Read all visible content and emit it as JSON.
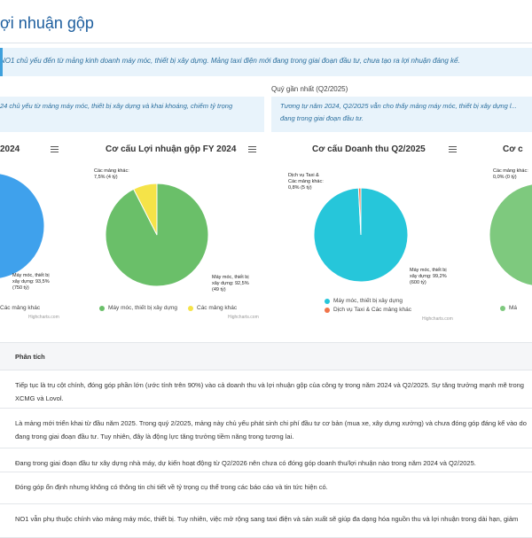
{
  "page": {
    "title": "ợi nhuận gộp",
    "banner": "NO1 chủ yếu đến từ mảng kinh doanh máy móc, thiết bị xây dựng. Mảng taxi điện mới đang trong giai đoạn đầu tư, chưa tạo ra lợi nhuận đáng kể.",
    "recent_quarter_label": "Quý gần nhất (Q2/2025)",
    "note_left": "24 chủ yếu từ mảng máy móc, thiết bị xây dựng và khai khoáng, chiếm tỷ trọng",
    "note_right": "Tương tự năm 2024, Q2/2025 vẫn cho thấy mảng máy móc, thiết bị xây dựng l... đang trong giai đoạn đầu tư."
  },
  "charts": [
    {
      "title": "2024",
      "label_main": [
        "Máy móc, thiết bị",
        "xây dựng: 93,5%",
        "(750 tỷ)"
      ],
      "legend": [
        "",
        "Các mảng khác"
      ],
      "credit": "Highcharts.com"
    },
    {
      "title": "Cơ cấu Lợi nhuận gộp FY 2024",
      "label_main": [
        "Máy móc, thiết bị",
        "xây dựng: 92,5%",
        "(49 tỷ)"
      ],
      "label_other": [
        "Các mảng khác:",
        "7,5% (4 tỷ)"
      ],
      "legend": [
        "Máy móc, thiết bị xây dựng",
        "Các mảng khác"
      ],
      "credit": "Highcharts.com"
    },
    {
      "title": "Cơ cấu Doanh thu Q2/2025",
      "label_main": [
        "Máy móc, thiết bị",
        "xây dựng: 99,2%",
        "(600 tỷ)"
      ],
      "label_other": [
        "Dịch vụ Taxi &",
        "Các mảng khác:",
        "0,8% (5 tỷ)"
      ],
      "legend": [
        "Máy móc, thiết bị xây dựng",
        "Dịch vụ Taxi & Các mảng khác"
      ],
      "credit": "Highcharts.com"
    },
    {
      "title": "Cơ c",
      "label_other": [
        "Các mảng khác:",
        "0,0% (0 tỷ)"
      ],
      "legend": [
        "Má"
      ]
    }
  ],
  "chart_data": [
    {
      "type": "pie",
      "title": "",
      "slices": [
        {
          "name": "Máy móc, thiết bị xây dựng",
          "value": 93.5
        },
        {
          "name": "Các mảng khác",
          "value": 6.5
        }
      ],
      "colors": [
        "#3fa1ec",
        "#f2e04f"
      ]
    },
    {
      "type": "pie",
      "title": "Cơ cấu Lợi nhuận gộp FY 2024",
      "slices": [
        {
          "name": "Máy móc, thiết bị xây dựng",
          "value": 92.5
        },
        {
          "name": "Các mảng khác",
          "value": 7.5
        }
      ],
      "colors": [
        "#6abf69",
        "#f5e348"
      ]
    },
    {
      "type": "pie",
      "title": "Cơ cấu Doanh thu Q2/2025",
      "slices": [
        {
          "name": "Máy móc, thiết bị xây dựng",
          "value": 99.2
        },
        {
          "name": "Dịch vụ Taxi & Các mảng khác",
          "value": 0.8
        }
      ],
      "colors": [
        "#26c6da",
        "#f0744a"
      ]
    },
    {
      "type": "pie",
      "title": "",
      "slices": [
        {
          "name": "Máy móc, thiết bị xây dựng",
          "value": 100
        },
        {
          "name": "Các mảng khác",
          "value": 0.0
        }
      ],
      "colors": [
        "#7ec97e",
        "#f5e348"
      ]
    }
  ],
  "table": {
    "header": "Phân tích",
    "rows": [
      "Tiếp tục là trụ cột chính, đóng góp phần lớn (ước tính trên 90%) vào cả doanh thu và lợi nhuận gộp của công ty trong năm 2024 và Q2/2025. Sự tăng trưởng mạnh mẽ trong XCMG và Lovol.",
      "Là mảng mới triển khai từ đầu năm 2025. Trong quý 2/2025, mảng này chủ yếu phát sinh chi phí đầu tư cơ bản (mua xe, xây dựng xưởng) và chưa đóng góp đáng kể vào do đang trong giai đoạn đầu tư. Tuy nhiên, đây là động lực tăng trưởng tiềm năng trong tương lai.",
      "Đang trong giai đoạn đầu tư xây dựng nhà máy, dự kiến hoạt động từ Q2/2026 nên chưa có đóng góp doanh thu/lợi nhuận nào trong năm 2024 và Q2/2025.",
      "Đóng góp ổn định nhưng không có thông tin chi tiết về tỷ trọng cụ thể trong các báo cáo và tin tức hiện có.",
      "NO1 vẫn phụ thuộc chính vào mảng máy móc, thiết bị. Tuy nhiên, việc mở rộng sang taxi điện và sản xuất sẽ giúp đa dạng hóa nguồn thu và lợi nhuận trong dài hạn, giảm"
    ]
  }
}
